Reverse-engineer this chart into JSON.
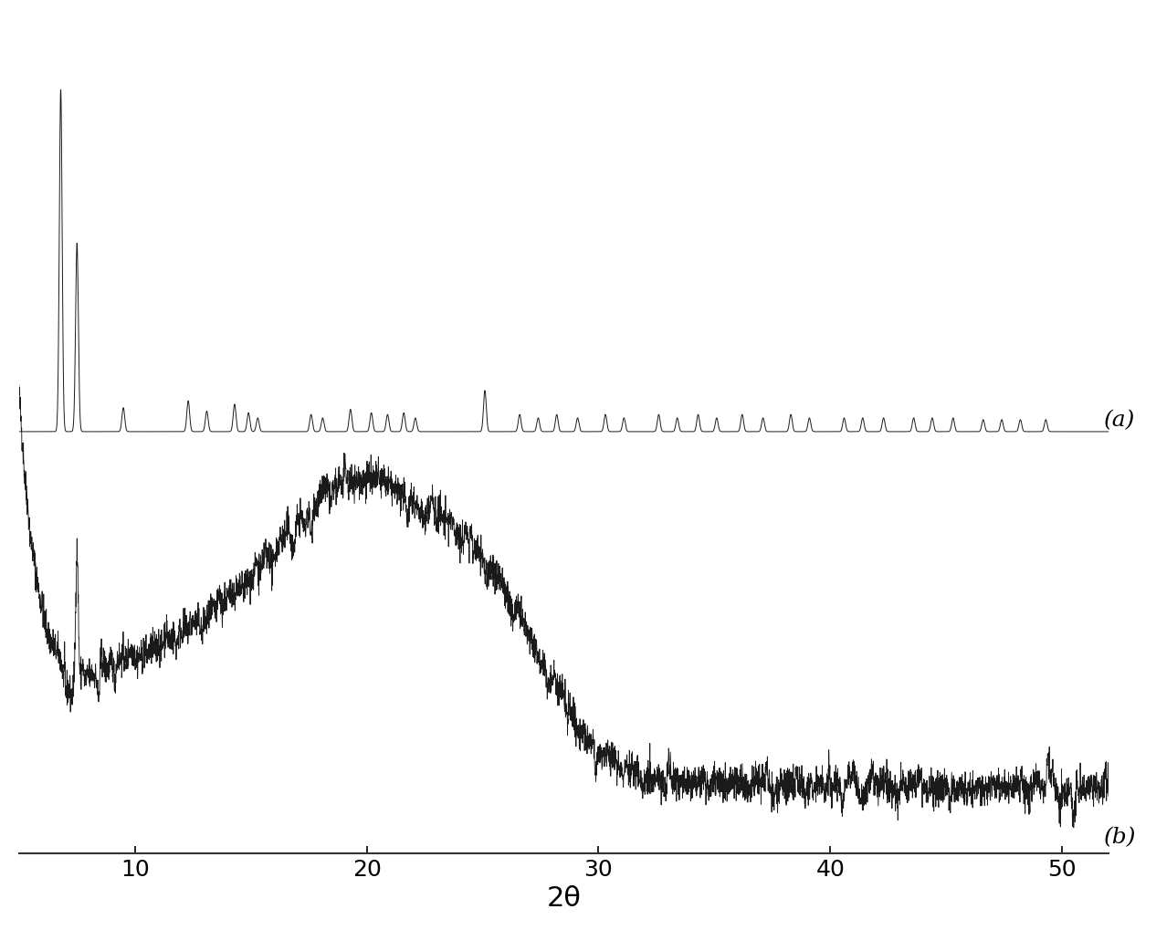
{
  "xlabel": "2θ",
  "xlim": [
    5,
    52
  ],
  "xticks": [
    10,
    20,
    30,
    40,
    50
  ],
  "background_color": "#ffffff",
  "line_color": "#1a1a1a",
  "label_a": "(a)",
  "label_b": "(b)",
  "label_fontsize": 18,
  "xlabel_fontsize": 22,
  "tick_fontsize": 18,
  "peak_positions_a": [
    6.8,
    7.5,
    9.5,
    12.3,
    13.1,
    14.3,
    14.9,
    15.3,
    17.6,
    18.1,
    19.3,
    20.2,
    20.9,
    21.6,
    22.1,
    25.1,
    26.6,
    27.4,
    28.2,
    29.1,
    30.3,
    31.1,
    32.6,
    33.4,
    34.3,
    35.1,
    36.2,
    37.1,
    38.3,
    39.1,
    40.6,
    41.4,
    42.3,
    43.6,
    44.4,
    45.3,
    46.6,
    47.4,
    48.2,
    49.3
  ],
  "peak_heights_a": [
    1.0,
    0.55,
    0.07,
    0.09,
    0.06,
    0.08,
    0.055,
    0.04,
    0.05,
    0.04,
    0.065,
    0.055,
    0.05,
    0.055,
    0.04,
    0.12,
    0.05,
    0.04,
    0.05,
    0.04,
    0.05,
    0.04,
    0.05,
    0.04,
    0.05,
    0.04,
    0.05,
    0.04,
    0.05,
    0.04,
    0.04,
    0.04,
    0.04,
    0.04,
    0.04,
    0.04,
    0.035,
    0.035,
    0.035,
    0.035
  ]
}
